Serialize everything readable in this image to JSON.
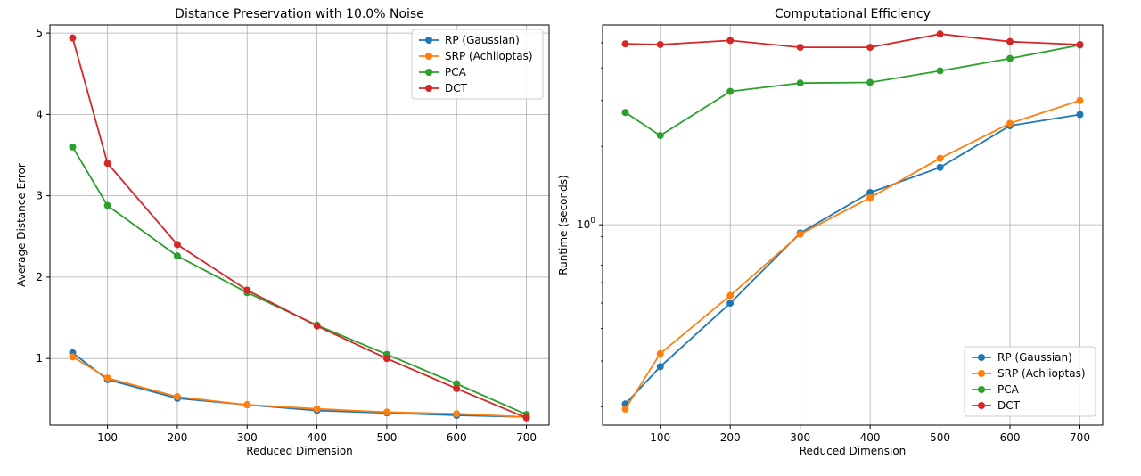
{
  "chart_data": [
    {
      "type": "line",
      "title": "Distance Preservation with 10.0% Noise",
      "xlabel": "Reduced Dimension",
      "ylabel": "Average Distance Error",
      "x": [
        50,
        100,
        200,
        300,
        400,
        500,
        600,
        700
      ],
      "xticks": [
        "100",
        "200",
        "300",
        "400",
        "500",
        "600",
        "700"
      ],
      "xtick_values": [
        100,
        200,
        300,
        400,
        500,
        600,
        700
      ],
      "yticks": [
        "1",
        "2",
        "3",
        "4",
        "5"
      ],
      "ytick_values": [
        1,
        2,
        3,
        4,
        5
      ],
      "xlim": [
        17.5,
        732.5
      ],
      "ylim": [
        0.18,
        5.1
      ],
      "yscale": "linear",
      "grid": true,
      "legend_position": "top-right",
      "series": [
        {
          "name": "RP (Gaussian)",
          "color": "#1f77b4",
          "values": [
            1.07,
            0.74,
            0.51,
            0.43,
            0.36,
            0.33,
            0.3,
            0.28
          ]
        },
        {
          "name": "SRP (Achlioptas)",
          "color": "#ff7f0e",
          "values": [
            1.02,
            0.76,
            0.53,
            0.43,
            0.38,
            0.34,
            0.32,
            0.28
          ]
        },
        {
          "name": "PCA",
          "color": "#2ca02c",
          "values": [
            3.6,
            2.88,
            2.26,
            1.81,
            1.41,
            1.05,
            0.69,
            0.31
          ]
        },
        {
          "name": "DCT",
          "color": "#d62728",
          "values": [
            4.94,
            3.4,
            2.4,
            1.84,
            1.4,
            1.0,
            0.63,
            0.27
          ]
        }
      ]
    },
    {
      "type": "line",
      "title": "Computational Efficiency",
      "xlabel": "Reduced Dimension",
      "ylabel": "Runtime (seconds)",
      "x": [
        50,
        100,
        200,
        300,
        400,
        500,
        600,
        700
      ],
      "xticks": [
        "100",
        "200",
        "300",
        "400",
        "500",
        "600",
        "700"
      ],
      "xtick_values": [
        100,
        200,
        300,
        400,
        500,
        600,
        700
      ],
      "yticks": [
        "10^0"
      ],
      "ytick_values": [
        1
      ],
      "ylim": [
        0.18,
        4.3
      ],
      "xlim": [
        17.5,
        732.5
      ],
      "yscale": "log",
      "grid": true,
      "legend_position": "bottom-right",
      "series": [
        {
          "name": "RP (Gaussian)",
          "color": "#1f77b4",
          "values": [
            0.205,
            0.285,
            0.5,
            0.93,
            1.33,
            1.66,
            2.4,
            2.65
          ]
        },
        {
          "name": "SRP (Achlioptas)",
          "color": "#ff7f0e",
          "values": [
            0.196,
            0.32,
            0.535,
            0.92,
            1.27,
            1.8,
            2.45,
            3.0
          ]
        },
        {
          "name": "PCA",
          "color": "#2ca02c",
          "values": [
            2.7,
            2.2,
            3.25,
            3.5,
            3.52,
            3.9,
            4.35,
            4.9
          ]
        },
        {
          "name": "DCT",
          "color": "#d62728",
          "values": [
            4.95,
            4.92,
            5.1,
            4.8,
            4.8,
            5.4,
            5.05,
            4.92
          ]
        }
      ]
    }
  ]
}
